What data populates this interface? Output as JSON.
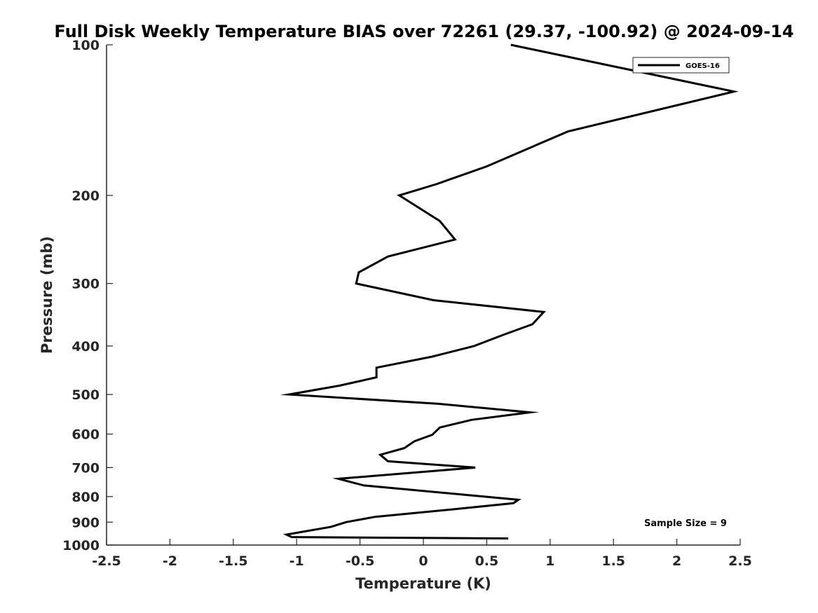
{
  "chart_data": {
    "type": "line",
    "title": "Full Disk Weekly Temperature BIAS over 72261 (29.37, -100.92) @ 2024-09-14",
    "xlabel": "Temperature (K)",
    "ylabel": "Pressure (mb)",
    "xlim": [
      -2.5,
      2.5
    ],
    "ylim": [
      100,
      1000
    ],
    "yscale": "log",
    "y_reversed": true,
    "xticks": [
      -2.5,
      -2,
      -1.5,
      -1,
      -0.5,
      0,
      0.5,
      1,
      1.5,
      2,
      2.5
    ],
    "xtick_labels": [
      "-2.5",
      "-2",
      "-1.5",
      "-1",
      "-0.5",
      "0",
      "0.5",
      "1",
      "1.5",
      "2",
      "2.5"
    ],
    "yticks": [
      100,
      200,
      300,
      400,
      500,
      600,
      700,
      800,
      900,
      1000
    ],
    "ytick_labels": [
      "100",
      "200",
      "300",
      "400",
      "500",
      "600",
      "700",
      "800",
      "900",
      "1000"
    ],
    "grid": false,
    "legend_position": "top-right",
    "series": [
      {
        "name": "GOES-16",
        "color": "#000000",
        "x": [
          0.69,
          2.45,
          1.14,
          0.5,
          0.1,
          -0.19,
          0.13,
          0.25,
          -0.28,
          -0.51,
          -0.53,
          0.08,
          0.95,
          0.86,
          0.63,
          0.4,
          0.07,
          -0.37,
          -0.37,
          -0.66,
          -1.06,
          0.12,
          0.84,
          0.38,
          0.13,
          0.07,
          -0.07,
          -0.15,
          -0.34,
          -0.28,
          0.41,
          -0.67,
          -0.47,
          0.75,
          0.71,
          0.2,
          -0.38,
          -0.61,
          -0.73,
          -1.08,
          -1.04,
          0.67
        ],
        "y": [
          100,
          124,
          149,
          175,
          190,
          200,
          225,
          245,
          265,
          285,
          300,
          324,
          342,
          362,
          380,
          400,
          420,
          442,
          462,
          480,
          500,
          522,
          543,
          562,
          582,
          602,
          620,
          640,
          660,
          680,
          700,
          737,
          760,
          812,
          825,
          850,
          878,
          900,
          920,
          953,
          964,
          970
        ]
      }
    ],
    "annotations": [
      {
        "text": "Sample Size = 9",
        "position": "bottom-right"
      }
    ]
  }
}
